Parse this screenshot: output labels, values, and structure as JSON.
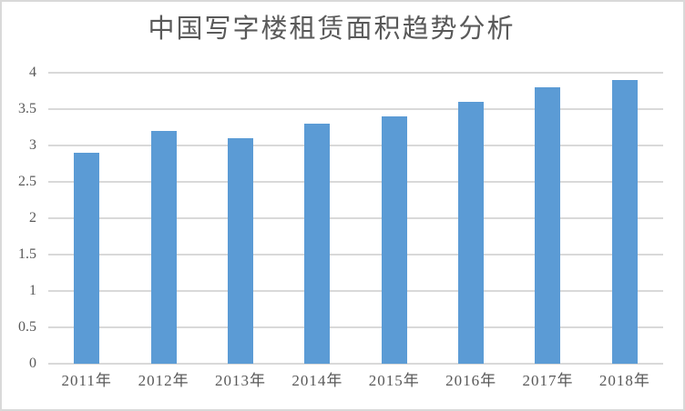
{
  "chart_data": {
    "type": "bar",
    "title": "中国写字楼租赁面积趋势分析",
    "categories": [
      "2011年",
      "2012年",
      "2013年",
      "2014年",
      "2015年",
      "2016年",
      "2017年",
      "2018年"
    ],
    "values": [
      2.9,
      3.2,
      3.1,
      3.3,
      3.4,
      3.6,
      3.8,
      3.9
    ],
    "xlabel": "",
    "ylabel": "",
    "ylim": [
      0,
      4
    ],
    "ytick_step": 0.5,
    "ytick_labels": [
      "0",
      "0.5",
      "1",
      "1.5",
      "2",
      "2.5",
      "3",
      "3.5",
      "4"
    ],
    "grid": "horizontal",
    "legend": "none",
    "colors": {
      "bar": "#5B9BD5",
      "gridline": "#D9D9D9",
      "axis_text": "#595959",
      "title_text": "#595959",
      "background": "#FFFFFF",
      "border": "#D9D9D9"
    }
  }
}
